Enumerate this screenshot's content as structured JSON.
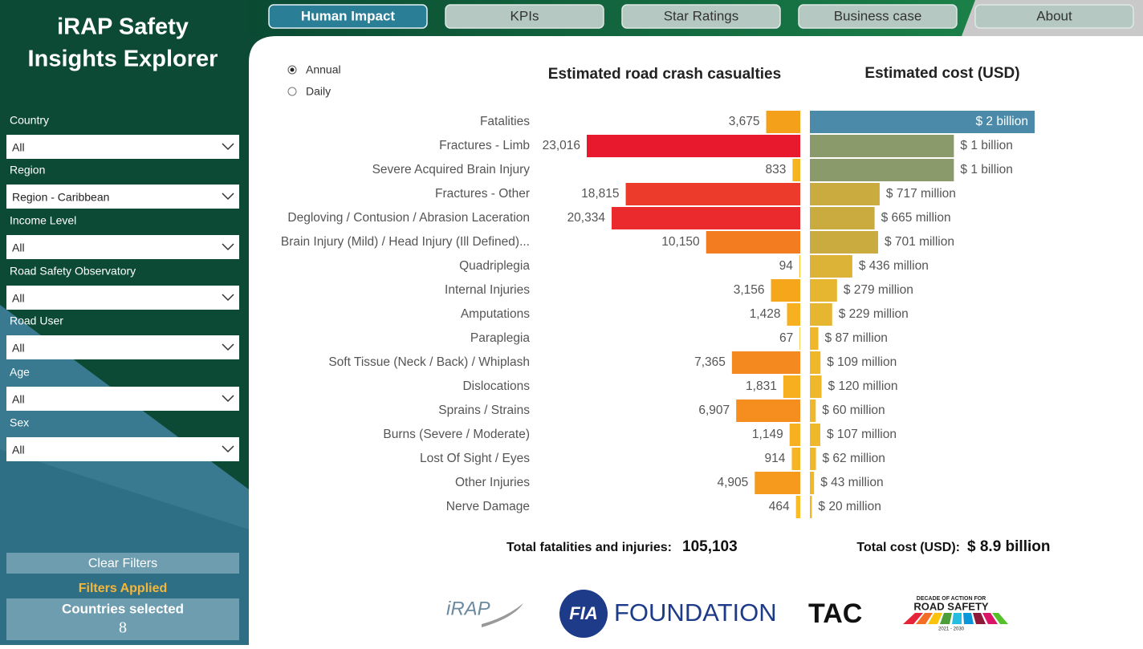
{
  "sidebar": {
    "title_lines": [
      "iRAP Safety",
      "Insights Explorer"
    ],
    "filters": [
      {
        "label": "Country",
        "value": "All"
      },
      {
        "label": "Region",
        "value": "Region - Caribbean"
      },
      {
        "label": "Income Level",
        "value": "All"
      },
      {
        "label": "Road Safety Observatory",
        "value": "All"
      },
      {
        "label": "Road User",
        "value": "All"
      },
      {
        "label": "Age",
        "value": "All"
      },
      {
        "label": "Sex",
        "value": "All"
      }
    ],
    "clear_button": "Clear Filters",
    "status": "Filters Applied",
    "countries_label": "Countries selected",
    "countries_count": "8"
  },
  "tabs": [
    "Human Impact",
    "KPIs",
    "Star Ratings",
    "Business case",
    "About"
  ],
  "active_tab": "Human Impact",
  "radio": {
    "options": [
      "Annual",
      "Daily"
    ],
    "selected": "Annual"
  },
  "chart_data": [
    {
      "type": "bar",
      "orientation": "horizontal",
      "direction": "left",
      "title": "Estimated road crash casualties",
      "categories": [
        "Fatalities",
        "Fractures - Limb",
        "Severe Acquired Brain Injury",
        "Fractures - Other",
        "Degloving / Contusion / Abrasion Laceration",
        "Brain Injury (Mild) / Head Injury (Ill Defined)...",
        "Quadriplegia",
        "Internal Injuries",
        "Amputations",
        "Paraplegia",
        "Soft Tissue (Neck / Back) / Whiplash",
        "Dislocations",
        "Sprains / Strains",
        "Burns (Severe / Moderate)",
        "Lost Of Sight / Eyes",
        "Other Injuries",
        "Nerve Damage"
      ],
      "values": [
        3675,
        23016,
        833,
        18815,
        20334,
        10150,
        94,
        3156,
        1428,
        67,
        7365,
        1831,
        6907,
        1149,
        914,
        4905,
        464
      ],
      "value_labels": [
        "3,675",
        "23,016",
        "833",
        "18,815",
        "20,334",
        "10,150",
        "94",
        "3,156",
        "1,428",
        "67",
        "7,365",
        "1,831",
        "6,907",
        "1,149",
        "914",
        "4,905",
        "464"
      ],
      "colors": [
        "#f5a01a",
        "#e8192c",
        "#f7b422",
        "#ec3a2b",
        "#ea2a2d",
        "#f47c20",
        "#f9c22a",
        "#f6a61b",
        "#f7b020",
        "#f9c22a",
        "#f48a1f",
        "#f7ae1f",
        "#f58e1f",
        "#f7b120",
        "#f7b422",
        "#f59a1c",
        "#f8bb25"
      ],
      "total_title": "Total fatalities and injuries:",
      "total": {
        "value": 105103,
        "label": "105,103"
      }
    },
    {
      "type": "bar",
      "orientation": "horizontal",
      "direction": "right",
      "title": "Estimated cost (USD)",
      "values": [
        2310000000,
        1480000000,
        1480000000,
        717000000,
        665000000,
        701000000,
        436000000,
        279000000,
        229000000,
        87000000,
        109000000,
        120000000,
        60000000,
        107000000,
        62000000,
        43000000,
        20000000
      ],
      "value_labels": [
        "$ 2 billion",
        "$ 1 billion",
        "$ 1 billion",
        "$ 717 million",
        "$ 665 million",
        "$ 701 million",
        "$ 436 million",
        "$ 279 million",
        "$ 229 million",
        "$ 87 million",
        "$ 109 million",
        "$ 120 million",
        "$ 60 million",
        "$ 107 million",
        "$ 62 million",
        "$ 43 million",
        "$ 20 million"
      ],
      "colors": [
        "#4b8aa8",
        "#8b9a6b",
        "#8b9a6b",
        "#c9ab40",
        "#c9ab40",
        "#c9ab40",
        "#dcb337",
        "#e6b631",
        "#e6b631",
        "#efb82a",
        "#efb82a",
        "#efb82a",
        "#efb82a",
        "#efb82a",
        "#efb82a",
        "#efb82a",
        "#efb82a"
      ],
      "total_title": "Total cost (USD):",
      "total": {
        "value": 8900000000,
        "label": "$ 8.9 billion"
      }
    }
  ],
  "logos": {
    "irap": "iRAP",
    "fia": "FIA",
    "fia_name": "FOUNDATION",
    "tac": "TAC",
    "decade_top": "DECADE OF ACTION FOR",
    "decade_main": "ROAD SAFETY",
    "decade_years": "2021 - 2030"
  }
}
